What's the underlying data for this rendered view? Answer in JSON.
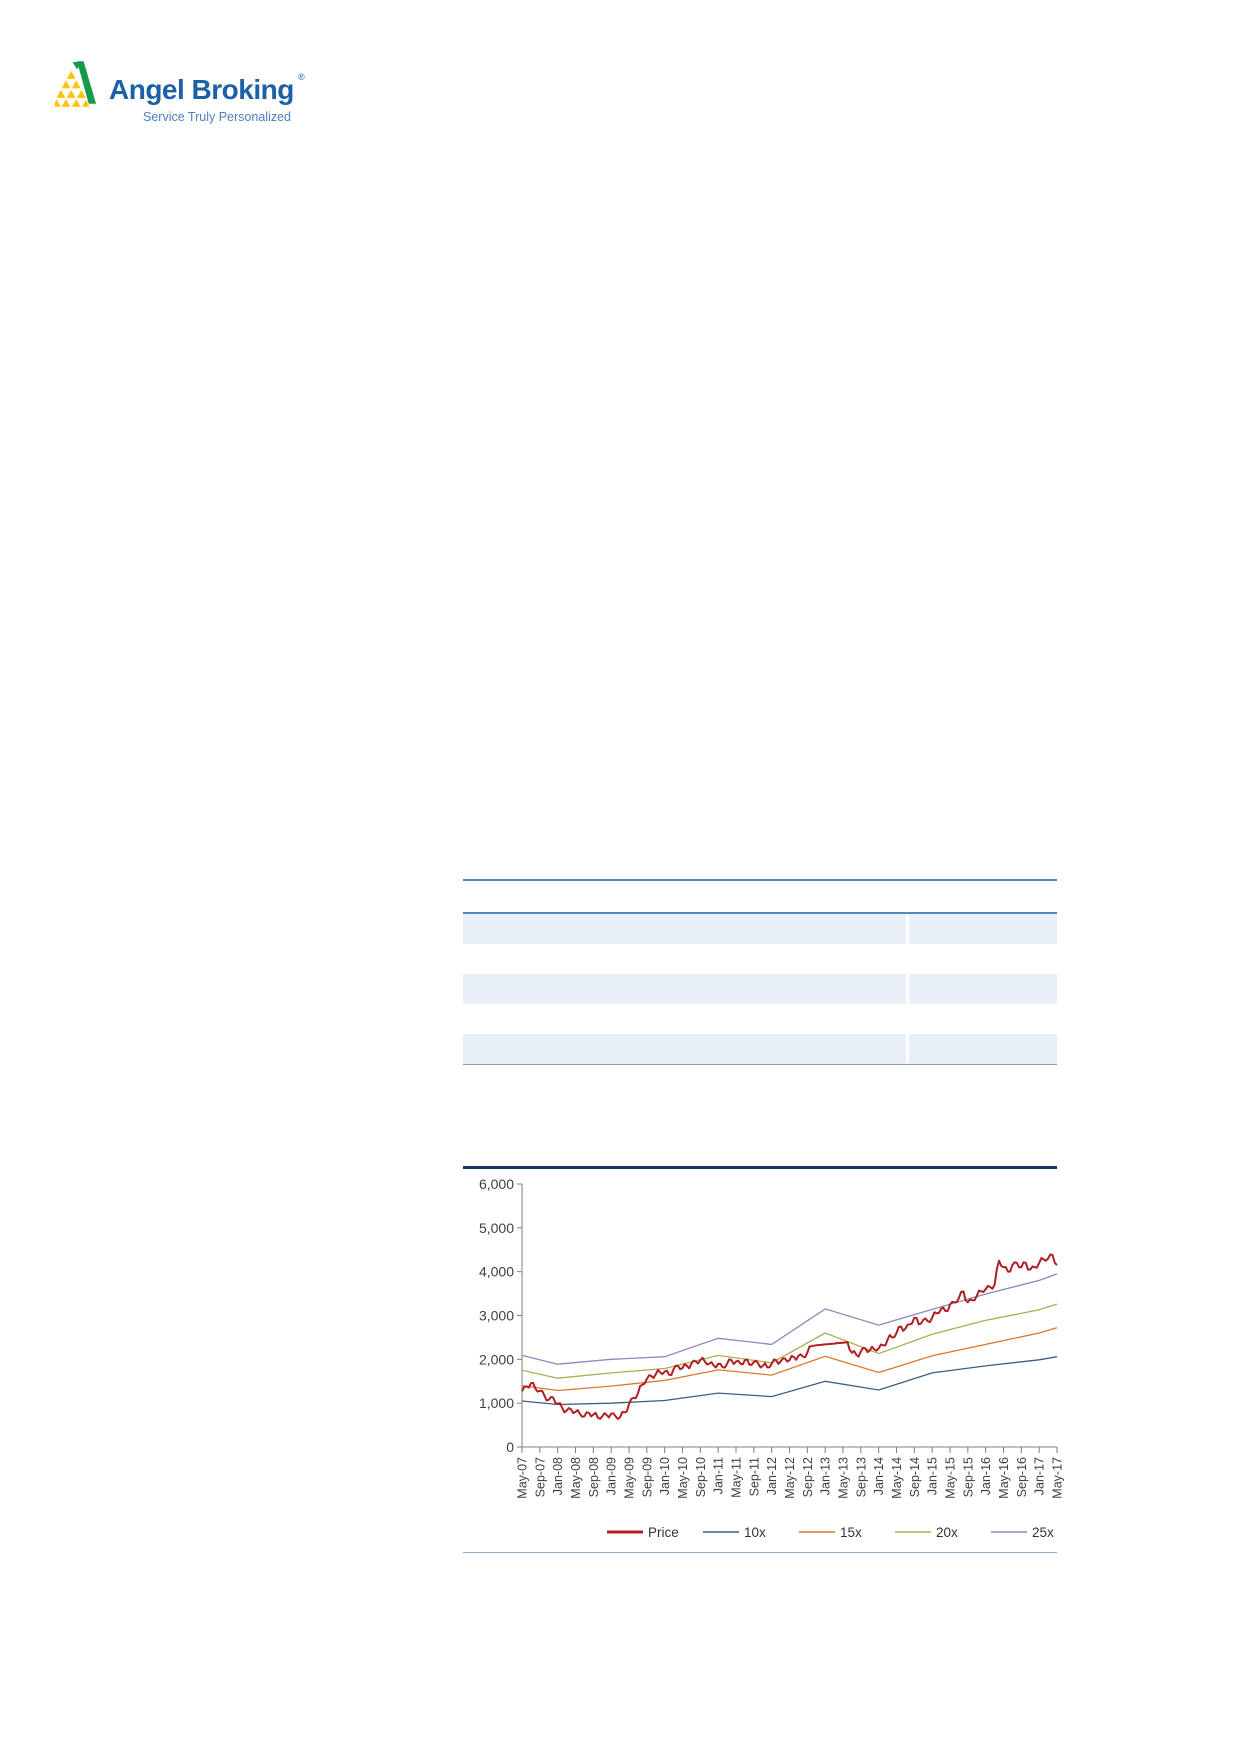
{
  "brand": {
    "name": "Angel Broking",
    "registered": "®",
    "tagline": "Service Truly Personalized",
    "colors": {
      "blue": "#1d60a8",
      "tagline_blue": "#4c7fc0",
      "yellow": "#ffc20d",
      "green": "#179a49"
    }
  },
  "table": {
    "column_count": 2,
    "row_count": 5,
    "header_text": "",
    "visible_cell_text": "",
    "band_color": "#eaf0f8",
    "border_color": "#5586bc"
  },
  "chart_data": {
    "type": "line",
    "title": "",
    "xlabel": "",
    "ylabel": "",
    "ylim": [
      0,
      6000
    ],
    "grid": false,
    "legend_position": "bottom",
    "y_tick_labels": [
      "6,000",
      "5,000",
      "4,000",
      "3,000",
      "2,000",
      "1,000",
      "0"
    ],
    "x_tick_labels": [
      "May-07",
      "Sep-07",
      "Jan-08",
      "May-08",
      "Sep-08",
      "Jan-09",
      "May-09",
      "Sep-09",
      "Jan-10",
      "May-10",
      "Sep-10",
      "Jan-11",
      "May-11",
      "Sep-11",
      "Jan-12",
      "May-12",
      "Sep-12",
      "Jan-13",
      "May-13",
      "Sep-13",
      "Jan-14",
      "May-14",
      "Sep-14",
      "Jan-15",
      "May-15",
      "Sep-15",
      "Jan-16",
      "May-16",
      "Sep-16",
      "Jan-17",
      "May-17"
    ],
    "x_tick_every_months": 4,
    "months_total": 121,
    "flat_segment": [
      65,
      73
    ],
    "series": [
      {
        "name": "Price",
        "color": "#b01f24",
        "style": "noisy",
        "monthly_values": [
          1270,
          1380,
          1450,
          1330,
          1280,
          1180,
          1080,
          1130,
          980,
          900,
          830,
          860,
          800,
          750,
          700,
          780,
          740,
          670,
          700,
          730,
          760,
          700,
          680,
          790,
          980,
          1120,
          1220,
          1420,
          1550,
          1620,
          1660,
          1700,
          1720,
          1650,
          1780,
          1850,
          1800,
          1850,
          1900,
          1950,
          1980,
          1950,
          1900,
          1860,
          1900,
          1820,
          1900,
          1980,
          1950,
          1900,
          1980,
          1880,
          1940,
          1900,
          1850,
          1820,
          1900,
          1980,
          1950,
          2020,
          1980,
          2050,
          2080,
          2060,
          2150,
          2300,
          2320,
          2330,
          2340,
          2350,
          2360,
          2370,
          2380,
          2390,
          2150,
          2100,
          2180,
          2250,
          2200,
          2230,
          2250,
          2320,
          2450,
          2500,
          2600,
          2750,
          2700,
          2800,
          2950,
          2800,
          2900,
          2870,
          2950,
          3050,
          3150,
          3100,
          3250,
          3300,
          3400,
          3550,
          3300,
          3350,
          3450,
          3550,
          3600,
          3650,
          3700,
          4250,
          4100,
          4000,
          4150,
          4200,
          4100,
          4200,
          4050,
          4100,
          4200,
          4280,
          4300,
          4380,
          4150
        ]
      },
      {
        "name": "10x",
        "color": "#3c5f7f",
        "style": "smooth",
        "knots": [
          [
            0,
            1050
          ],
          [
            8,
            970
          ],
          [
            20,
            1000
          ],
          [
            32,
            1060
          ],
          [
            44,
            1230
          ],
          [
            56,
            1150
          ],
          [
            68,
            1500
          ],
          [
            80,
            1300
          ],
          [
            92,
            1690
          ],
          [
            104,
            1850
          ],
          [
            116,
            1990
          ],
          [
            120,
            2060
          ]
        ]
      },
      {
        "name": "15x",
        "color": "#d9782d",
        "style": "smooth",
        "knots": [
          [
            0,
            1400
          ],
          [
            8,
            1290
          ],
          [
            20,
            1390
          ],
          [
            32,
            1520
          ],
          [
            44,
            1760
          ],
          [
            56,
            1640
          ],
          [
            68,
            2070
          ],
          [
            80,
            1700
          ],
          [
            92,
            2080
          ],
          [
            104,
            2340
          ],
          [
            116,
            2600
          ],
          [
            120,
            2720
          ]
        ]
      },
      {
        "name": "20x",
        "color": "#a9af52",
        "style": "smooth",
        "knots": [
          [
            0,
            1750
          ],
          [
            8,
            1570
          ],
          [
            20,
            1690
          ],
          [
            32,
            1790
          ],
          [
            44,
            2090
          ],
          [
            56,
            1920
          ],
          [
            68,
            2600
          ],
          [
            80,
            2130
          ],
          [
            92,
            2570
          ],
          [
            104,
            2890
          ],
          [
            116,
            3130
          ],
          [
            120,
            3260
          ]
        ]
      },
      {
        "name": "25x",
        "color": "#8f87bd",
        "style": "smooth",
        "knots": [
          [
            0,
            2090
          ],
          [
            8,
            1890
          ],
          [
            20,
            2000
          ],
          [
            32,
            2060
          ],
          [
            44,
            2480
          ],
          [
            56,
            2340
          ],
          [
            68,
            3150
          ],
          [
            80,
            2780
          ],
          [
            92,
            3140
          ],
          [
            104,
            3490
          ],
          [
            116,
            3800
          ],
          [
            120,
            3950
          ]
        ]
      }
    ]
  },
  "rules": {
    "chart_top_rule_color": "#17375e",
    "chart_bottom_rule_color": "#8facce",
    "axis_color": "#7f7f7f",
    "tick_label_color": "#404040"
  }
}
